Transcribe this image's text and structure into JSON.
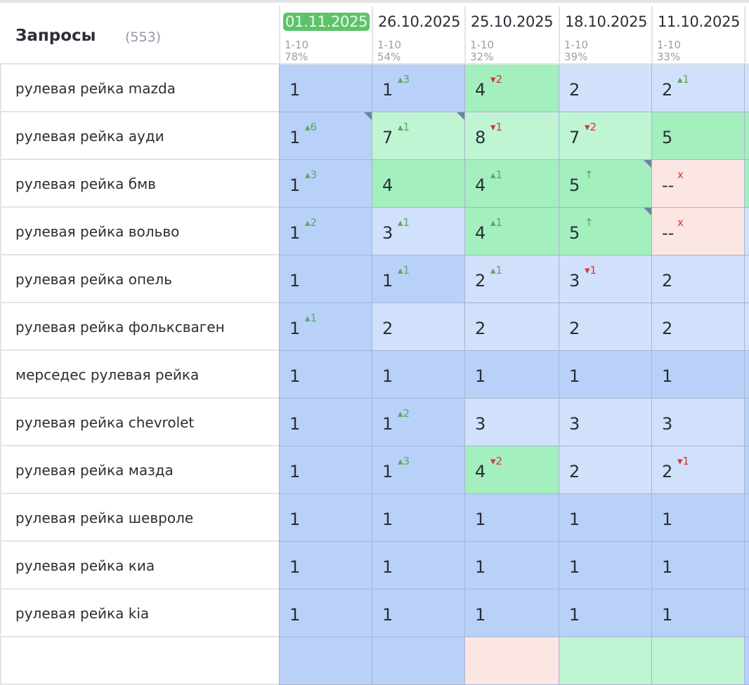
{
  "header": {
    "title": "Запросы",
    "count": "(553)"
  },
  "columns": [
    {
      "date": "01.11.2025",
      "range": "1-10",
      "percent": "78%",
      "current": true
    },
    {
      "date": "26.10.2025",
      "range": "1-10",
      "percent": "54%"
    },
    {
      "date": "25.10.2025",
      "range": "1-10",
      "percent": "32%"
    },
    {
      "date": "18.10.2025",
      "range": "1-10",
      "percent": "39%"
    },
    {
      "date": "11.10.2025",
      "range": "1-10",
      "percent": "33%"
    }
  ],
  "colors": {
    "blue": "#b9d1f8",
    "light_blue": "#d1e0fb",
    "green": "#a3efbe",
    "light_green": "#bff5d3",
    "red": "#fce6e3",
    "current_date": "#5ec26a"
  },
  "rows": [
    {
      "query": "рулевая рейка mazda",
      "cells": [
        {
          "v": "1",
          "bg": "b1"
        },
        {
          "v": "1",
          "c": "▴3",
          "d": "up",
          "bg": "b1"
        },
        {
          "v": "4",
          "c": "▾2",
          "d": "down",
          "bg": "g1"
        },
        {
          "v": "2",
          "bg": "b2"
        },
        {
          "v": "2",
          "c": "▴1",
          "d": "up",
          "bg": "b2"
        }
      ],
      "edge": "b2"
    },
    {
      "query": "рулевая рейка ауди",
      "cells": [
        {
          "v": "1",
          "c": "▴6",
          "d": "up",
          "bg": "b1",
          "note": true
        },
        {
          "v": "7",
          "c": "▴1",
          "d": "up",
          "bg": "g2",
          "note": true
        },
        {
          "v": "8",
          "c": "▾1",
          "d": "down",
          "bg": "g2"
        },
        {
          "v": "7",
          "c": "▾2",
          "d": "down",
          "bg": "g2"
        },
        {
          "v": "5",
          "bg": "g1"
        }
      ],
      "edge": "g1"
    },
    {
      "query": "рулевая рейка бмв",
      "cells": [
        {
          "v": "1",
          "c": "▴3",
          "d": "up",
          "bg": "b1"
        },
        {
          "v": "4",
          "bg": "g1"
        },
        {
          "v": "4",
          "c": "▴1",
          "d": "up",
          "bg": "g1"
        },
        {
          "v": "5",
          "c": "↑",
          "d": "up",
          "bg": "g1",
          "note": true
        },
        {
          "v": "--",
          "c": "x",
          "d": "x",
          "bg": "r"
        }
      ],
      "edge": "g1"
    },
    {
      "query": "рулевая рейка вольво",
      "cells": [
        {
          "v": "1",
          "c": "▴2",
          "d": "up",
          "bg": "b1"
        },
        {
          "v": "3",
          "c": "▴1",
          "d": "up",
          "bg": "b2"
        },
        {
          "v": "4",
          "c": "▴1",
          "d": "up",
          "bg": "g1"
        },
        {
          "v": "5",
          "c": "↑",
          "d": "up",
          "bg": "g1",
          "note": true
        },
        {
          "v": "--",
          "c": "x",
          "d": "x",
          "bg": "r"
        }
      ],
      "edge": "b2"
    },
    {
      "query": "рулевая рейка опель",
      "cells": [
        {
          "v": "1",
          "bg": "b1"
        },
        {
          "v": "1",
          "c": "▴1",
          "d": "up",
          "bg": "b1"
        },
        {
          "v": "2",
          "c": "▴1",
          "d": "up",
          "bg": "b2"
        },
        {
          "v": "3",
          "c": "▾1",
          "d": "down",
          "bg": "b2"
        },
        {
          "v": "2",
          "bg": "b2"
        }
      ],
      "edge": "b2"
    },
    {
      "query": "рулевая рейка фольксваген",
      "cells": [
        {
          "v": "1",
          "c": "▴1",
          "d": "up",
          "bg": "b1"
        },
        {
          "v": "2",
          "bg": "b2"
        },
        {
          "v": "2",
          "bg": "b2"
        },
        {
          "v": "2",
          "bg": "b2"
        },
        {
          "v": "2",
          "bg": "b2"
        }
      ],
      "edge": "b2"
    },
    {
      "query": "мерседес рулевая рейка",
      "cells": [
        {
          "v": "1",
          "bg": "b1"
        },
        {
          "v": "1",
          "bg": "b1"
        },
        {
          "v": "1",
          "bg": "b1"
        },
        {
          "v": "1",
          "bg": "b1"
        },
        {
          "v": "1",
          "bg": "b1"
        }
      ],
      "edge": "b1"
    },
    {
      "query": "рулевая рейка chevrolet",
      "cells": [
        {
          "v": "1",
          "bg": "b1"
        },
        {
          "v": "1",
          "c": "▴2",
          "d": "up",
          "bg": "b1"
        },
        {
          "v": "3",
          "bg": "b2"
        },
        {
          "v": "3",
          "bg": "b2"
        },
        {
          "v": "3",
          "bg": "b2"
        }
      ],
      "edge": "b1"
    },
    {
      "query": "рулевая рейка мазда",
      "cells": [
        {
          "v": "1",
          "bg": "b1"
        },
        {
          "v": "1",
          "c": "▴3",
          "d": "up",
          "bg": "b1"
        },
        {
          "v": "4",
          "c": "▾2",
          "d": "down",
          "bg": "g1"
        },
        {
          "v": "2",
          "bg": "b2"
        },
        {
          "v": "2",
          "c": "▾1",
          "d": "down",
          "bg": "b2"
        }
      ],
      "edge": "b1"
    },
    {
      "query": "рулевая рейка шевроле",
      "cells": [
        {
          "v": "1",
          "bg": "b1"
        },
        {
          "v": "1",
          "bg": "b1"
        },
        {
          "v": "1",
          "bg": "b1"
        },
        {
          "v": "1",
          "bg": "b1"
        },
        {
          "v": "1",
          "bg": "b1"
        }
      ],
      "edge": "b1"
    },
    {
      "query": "рулевая рейка киа",
      "cells": [
        {
          "v": "1",
          "bg": "b1"
        },
        {
          "v": "1",
          "bg": "b1"
        },
        {
          "v": "1",
          "bg": "b1"
        },
        {
          "v": "1",
          "bg": "b1"
        },
        {
          "v": "1",
          "bg": "b1"
        }
      ],
      "edge": "b1"
    },
    {
      "query": "рулевая рейка kia",
      "cells": [
        {
          "v": "1",
          "bg": "b1"
        },
        {
          "v": "1",
          "bg": "b1"
        },
        {
          "v": "1",
          "bg": "b1"
        },
        {
          "v": "1",
          "bg": "b1"
        },
        {
          "v": "1",
          "bg": "b1"
        }
      ],
      "edge": "b1"
    },
    {
      "query": "",
      "cells": [
        {
          "v": "",
          "bg": "b1"
        },
        {
          "v": "",
          "bg": "b1"
        },
        {
          "v": "",
          "bg": "r"
        },
        {
          "v": "",
          "bg": "g2"
        },
        {
          "v": "",
          "bg": "g2"
        }
      ],
      "edge": "b1"
    }
  ]
}
